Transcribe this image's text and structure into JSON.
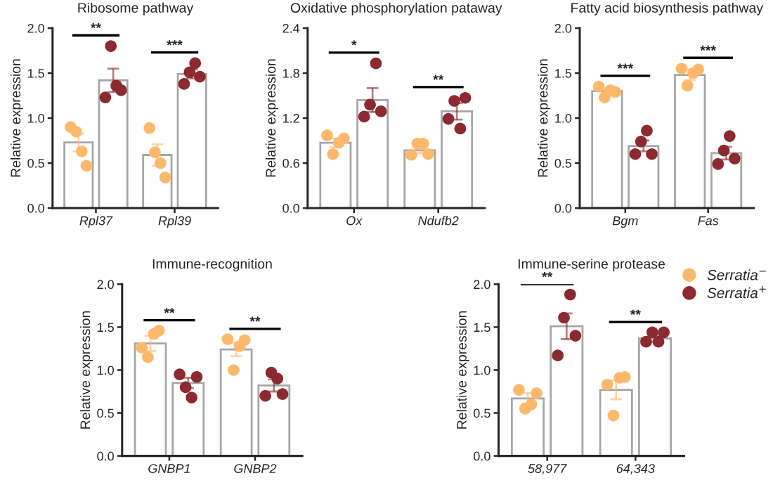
{
  "chart_data": [
    {
      "type": "bar",
      "title": "Ribosome pathway",
      "ylabel": "Relative expression",
      "categories": [
        "Rpl37",
        "Rpl39"
      ],
      "ylim": [
        0,
        2
      ],
      "yticks": [
        {
          "value": 0,
          "label": "0.0"
        },
        0.5,
        {
          "value": 1,
          "label": "1.0"
        },
        1.5,
        {
          "value": 2,
          "label": "2.0"
        }
      ],
      "series": [
        {
          "color": "#ffffff",
          "values": [
            0.73,
            0.59
          ],
          "errors": [
            0.1,
            0.12
          ]
        },
        {
          "color": "#ffffff",
          "values": [
            1.42,
            1.49
          ],
          "errors": [
            0.13,
            0.05
          ]
        },
        {
          "type": "scatter",
          "color": "#fdb96b",
          "x": [
            "Rpl37",
            "Rpl37",
            "Rpl37",
            "Rpl37",
            "Rpl39",
            "Rpl39",
            "Rpl39",
            "Rpl39"
          ],
          "values": [
            0.9,
            0.85,
            0.63,
            0.47,
            0.89,
            0.62,
            0.5,
            0.34
          ]
        },
        {
          "type": "scatter",
          "color": "#8b2a2f",
          "x": [
            "Rpl37",
            "Rpl37",
            "Rpl37",
            "Rpl37",
            "Rpl39",
            "Rpl39",
            "Rpl39",
            "Rpl39"
          ],
          "values": [
            1.23,
            1.8,
            1.36,
            1.31,
            1.38,
            1.51,
            1.61,
            1.46
          ]
        }
      ],
      "annotations": [
        "**",
        "***"
      ]
    },
    {
      "type": "bar",
      "title": "Oxidative phosphorylation pataway",
      "ylabel": "Relative expression",
      "categories": [
        "Ox",
        "Ndufb2"
      ],
      "ylim": [
        0,
        2.4
      ],
      "yticks": [
        {
          "value": 0,
          "label": "0.0"
        },
        0.6,
        1.2,
        1.8,
        2.4
      ],
      "series": [
        {
          "color": "#ffffff",
          "values": [
            0.87,
            0.77
          ],
          "errors": [
            0.06,
            0.04
          ]
        },
        {
          "color": "#ffffff",
          "values": [
            1.44,
            1.29
          ],
          "errors": [
            0.16,
            0.11
          ]
        },
        {
          "type": "scatter",
          "color": "#fdb96b",
          "x": [
            "Ox",
            "Ox",
            "Ox",
            "Ox",
            "Ndufb2",
            "Ndufb2",
            "Ndufb2",
            "Ndufb2"
          ],
          "values": [
            0.97,
            0.72,
            0.87,
            0.93,
            0.71,
            0.86,
            0.86,
            0.72
          ]
        },
        {
          "type": "scatter",
          "color": "#8b2a2f",
          "x": [
            "Ox",
            "Ox",
            "Ox",
            "Ox",
            "Ndufb2",
            "Ndufb2",
            "Ndufb2",
            "Ndufb2"
          ],
          "values": [
            1.22,
            1.38,
            1.93,
            1.29,
            1.19,
            1.43,
            1.06,
            1.47
          ]
        }
      ],
      "annotations": [
        "*",
        "**"
      ]
    },
    {
      "type": "bar",
      "title": "Fatty acid biosynthesis pathway",
      "ylabel": "Relative expression",
      "categories": [
        "Bgm",
        "Fas"
      ],
      "ylim": [
        0,
        2
      ],
      "yticks": [
        {
          "value": 0,
          "label": "0.0"
        },
        0.5,
        {
          "value": 1,
          "label": "1.0"
        },
        1.5,
        {
          "value": 2,
          "label": "2.0"
        }
      ],
      "series": [
        {
          "color": "#ffffff",
          "values": [
            1.3,
            1.48
          ],
          "errors": [
            0.02,
            0.06
          ]
        },
        {
          "color": "#ffffff",
          "values": [
            0.69,
            0.61
          ],
          "errors": [
            0.06,
            0.07
          ]
        },
        {
          "type": "scatter",
          "color": "#fdb96b",
          "x": [
            "Bgm",
            "Bgm",
            "Bgm",
            "Bgm",
            "Fas",
            "Fas",
            "Fas",
            "Fas"
          ],
          "values": [
            1.35,
            1.23,
            1.31,
            1.29,
            1.55,
            1.36,
            1.5,
            1.54
          ]
        },
        {
          "type": "scatter",
          "color": "#8b2a2f",
          "x": [
            "Bgm",
            "Bgm",
            "Bgm",
            "Bgm",
            "Fas",
            "Fas",
            "Fas",
            "Fas"
          ],
          "values": [
            0.6,
            0.74,
            0.86,
            0.6,
            0.49,
            0.64,
            0.8,
            0.55
          ]
        }
      ],
      "annotations": [
        "***",
        "***"
      ]
    },
    {
      "type": "bar",
      "title": "Immune-recognition",
      "ylabel": "Relative expression",
      "categories": [
        "GNBP1",
        "GNBP2"
      ],
      "ylim": [
        0,
        2
      ],
      "yticks": [
        {
          "value": 0,
          "label": "0.0"
        },
        0.5,
        {
          "value": 1,
          "label": "1.0"
        },
        1.5,
        {
          "value": 2,
          "label": "2.0"
        }
      ],
      "series": [
        {
          "color": "#ffffff",
          "values": [
            1.31,
            1.24
          ],
          "errors": [
            0.09,
            0.08
          ]
        },
        {
          "color": "#ffffff",
          "values": [
            0.85,
            0.82
          ],
          "errors": [
            0.06,
            0.07
          ]
        },
        {
          "type": "scatter",
          "color": "#fdb96b",
          "x": [
            "GNBP1",
            "GNBP1",
            "GNBP1",
            "GNBP1",
            "GNBP2",
            "GNBP2",
            "GNBP2",
            "GNBP2"
          ],
          "values": [
            1.26,
            1.15,
            1.42,
            1.46,
            1.36,
            1.0,
            1.28,
            1.35
          ]
        },
        {
          "type": "scatter",
          "color": "#8b2a2f",
          "x": [
            "GNBP1",
            "GNBP1",
            "GNBP1",
            "GNBP1",
            "GNBP2",
            "GNBP2",
            "GNBP2",
            "GNBP2"
          ],
          "values": [
            0.95,
            0.8,
            0.68,
            0.92,
            0.7,
            0.97,
            0.9,
            0.72
          ]
        }
      ],
      "annotations": [
        "**",
        "**"
      ]
    },
    {
      "type": "bar",
      "title": "Immune-serine protease",
      "ylabel": "Relative expression",
      "categories": [
        "58,977",
        "64,343"
      ],
      "ylim": [
        0,
        2
      ],
      "yticks": [
        {
          "value": 0,
          "label": "0.0"
        },
        0.5,
        {
          "value": 1,
          "label": "1.0"
        },
        1.5,
        {
          "value": 2,
          "label": "2.0"
        }
      ],
      "legend": "top right",
      "series": [
        {
          "color": "#ffffff",
          "values": [
            0.67,
            0.77
          ],
          "errors": [
            0.06,
            0.11
          ]
        },
        {
          "color": "#ffffff",
          "values": [
            1.51,
            1.37
          ],
          "errors": [
            0.15,
            0.04
          ]
        },
        {
          "type": "scatter",
          "name": "Serratia$^{−}$",
          "color": "#fdb96b",
          "x": [
            "58,977",
            "58,977",
            "58,977",
            "58,977",
            "64,343",
            "64,343",
            "64,343",
            "64,343"
          ],
          "values": [
            0.77,
            0.55,
            0.6,
            0.73,
            0.83,
            0.47,
            0.91,
            0.92
          ]
        },
        {
          "type": "scatter",
          "name": "Serratia$^{+}$",
          "color": "#8b2a2f",
          "x": [
            "58,977",
            "58,977",
            "58,977",
            "58,977",
            "64,343",
            "64,343",
            "64,343",
            "64,343"
          ],
          "values": [
            1.17,
            1.61,
            1.88,
            1.4,
            1.33,
            1.44,
            1.33,
            1.44
          ]
        }
      ],
      "annotations": [
        "**",
        "**"
      ]
    }
  ]
}
